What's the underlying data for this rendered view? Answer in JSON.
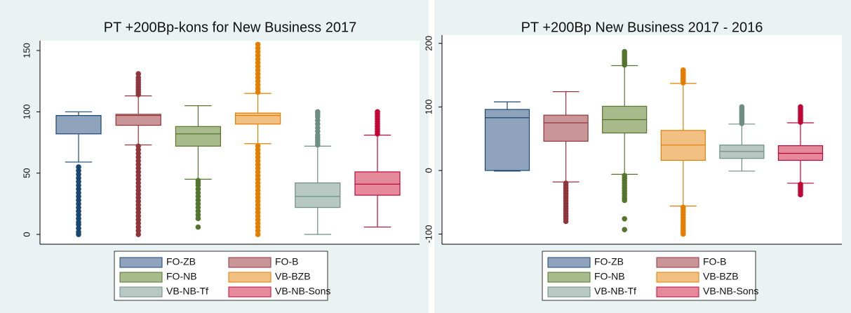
{
  "chart_data": [
    {
      "type": "box",
      "title": "PT +200Bp-kons for New Business 2017",
      "ylim": [
        -8,
        158
      ],
      "yticks": [
        0,
        50,
        100,
        150
      ],
      "series": [
        {
          "name": "FO-ZB",
          "color": "#1a476f",
          "fill": "#8fa3bc",
          "whislo": 59,
          "q1": 82,
          "med": 97,
          "q3": 97,
          "whishi": 100,
          "fliers": [
            0,
            2,
            5,
            8,
            10,
            13,
            16,
            19,
            22,
            25,
            28,
            31,
            34,
            37,
            40,
            43,
            46,
            49,
            52,
            55
          ]
        },
        {
          "name": "FO-B",
          "color": "#90353b",
          "fill": "#c99597",
          "whislo": 73,
          "q1": 89,
          "med": 97,
          "q3": 98,
          "whishi": 113,
          "fliers": [
            0,
            3,
            6,
            9,
            12,
            15,
            18,
            21,
            24,
            27,
            30,
            33,
            36,
            39,
            42,
            45,
            48,
            51,
            54,
            57,
            60,
            63,
            66,
            69,
            72,
            114,
            116,
            118,
            120,
            122,
            124,
            126,
            128,
            131
          ]
        },
        {
          "name": "FO-NB",
          "color": "#55752f",
          "fill": "#a9ba8c",
          "whislo": 45,
          "q1": 72,
          "med": 82,
          "q3": 88,
          "whishi": 105,
          "fliers": [
            6,
            13,
            16,
            19,
            22,
            25,
            28,
            31,
            34,
            37,
            40,
            42,
            44
          ]
        },
        {
          "name": "VB-BZB",
          "color": "#e37e00",
          "fill": "#f3c084",
          "whislo": 74,
          "q1": 90,
          "med": 97,
          "q3": 99,
          "whishi": 115,
          "fliers": [
            0,
            3,
            6,
            9,
            12,
            15,
            18,
            21,
            24,
            27,
            30,
            33,
            36,
            39,
            42,
            45,
            48,
            51,
            54,
            57,
            60,
            63,
            66,
            69,
            72,
            116,
            119,
            122,
            125,
            128,
            131,
            134,
            137,
            140,
            143,
            146,
            149,
            152,
            155
          ]
        },
        {
          "name": "VB-NB-Tf",
          "color": "#6e8e84",
          "fill": "#b8c8c2",
          "whislo": 0,
          "q1": 22,
          "med": 31,
          "q3": 42,
          "whishi": 72,
          "fliers": [
            73,
            75,
            77,
            79,
            81,
            84,
            87,
            90,
            93,
            96,
            98,
            100
          ]
        },
        {
          "name": "VB-NB-Sons",
          "color": "#c10534",
          "fill": "#e48a9b",
          "whislo": 6,
          "q1": 32,
          "med": 41,
          "q3": 51,
          "whishi": 81,
          "fliers": [
            82,
            84,
            86,
            88,
            90,
            92,
            94,
            96,
            98,
            100
          ]
        }
      ]
    },
    {
      "type": "box",
      "title": "PT +200Bp New Business 2017 - 2016",
      "ylim": [
        -116,
        213
      ],
      "yticks": [
        -100,
        0,
        100,
        200
      ],
      "series": [
        {
          "name": "FO-ZB",
          "color": "#1a476f",
          "fill": "#8fa3bc",
          "whislo": -1,
          "q1": 0,
          "med": 83,
          "q3": 96,
          "whishi": 108,
          "fliers": []
        },
        {
          "name": "FO-B",
          "color": "#90353b",
          "fill": "#c99597",
          "whislo": -18,
          "q1": 46,
          "med": 75,
          "q3": 87,
          "whishi": 124,
          "fliers": [
            -20,
            -24,
            -28,
            -32,
            -36,
            -40,
            -44,
            -48,
            -52,
            -56,
            -60,
            -64,
            -68,
            -72,
            -76,
            -80
          ]
        },
        {
          "name": "FO-NB",
          "color": "#55752f",
          "fill": "#a9ba8c",
          "whislo": -6,
          "q1": 59,
          "med": 80,
          "q3": 101,
          "whishi": 165,
          "fliers": [
            166,
            169,
            172,
            175,
            178,
            181,
            184,
            187,
            -8,
            -12,
            -16,
            -20,
            -24,
            -28,
            -32,
            -36,
            -40,
            -44,
            -47,
            -76,
            -93
          ]
        },
        {
          "name": "VB-BZB",
          "color": "#e37e00",
          "fill": "#f3c084",
          "whislo": -56,
          "q1": 16,
          "med": 40,
          "q3": 63,
          "whishi": 137,
          "fliers": [
            138,
            141,
            144,
            147,
            150,
            153,
            156,
            158,
            -58,
            -62,
            -66,
            -70,
            -74,
            -78,
            -82,
            -86,
            -90,
            -94,
            -97,
            -100
          ]
        },
        {
          "name": "VB-NB-Tf",
          "color": "#6e8e84",
          "fill": "#b8c8c2",
          "whislo": -1,
          "q1": 19,
          "med": 30,
          "q3": 40,
          "whishi": 73,
          "fliers": [
            74,
            77,
            80,
            83,
            86,
            89,
            92,
            95,
            98,
            100
          ]
        },
        {
          "name": "VB-NB-Sons",
          "color": "#c10534",
          "fill": "#e48a9b",
          "whislo": -20,
          "q1": 16,
          "med": 27,
          "q3": 39,
          "whishi": 75,
          "fliers": [
            76,
            79,
            82,
            85,
            88,
            91,
            94,
            97,
            100,
            -22,
            -25,
            -28,
            -31,
            -34,
            -38
          ]
        }
      ]
    }
  ]
}
